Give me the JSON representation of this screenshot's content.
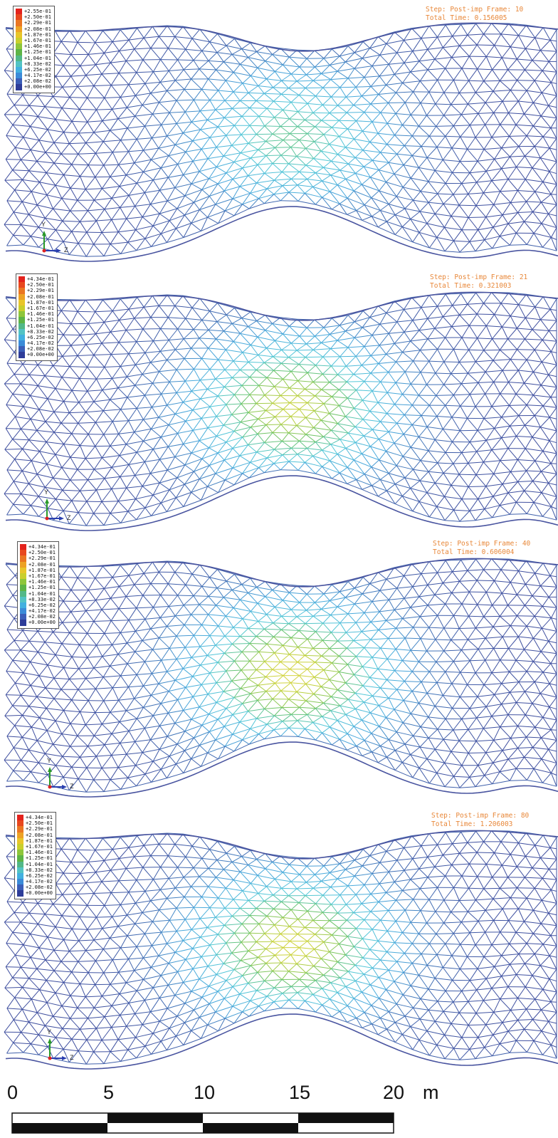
{
  "panels": [
    {
      "id": "frame-10",
      "step_line": "Step: Post-imp Frame: 10",
      "time_line": "Total Time: 0.156005",
      "legend": [
        "+2.55e-01",
        "+2.50e-01",
        "+2.29e-01",
        "+2.08e-01",
        "+1.87e-01",
        "+1.67e-01",
        "+1.46e-01",
        "+1.25e-01",
        "+1.04e-01",
        "+8.33e-02",
        "+6.25e-02",
        "+4.17e-02",
        "+2.08e-02",
        "+0.00e+00"
      ],
      "peak_level": 0.55
    },
    {
      "id": "frame-21",
      "step_line": "Step: Post-imp Frame: 21",
      "time_line": "Total Time: 0.321003",
      "legend": [
        "+4.34e-01",
        "+2.50e-01",
        "+2.29e-01",
        "+2.08e-01",
        "+1.87e-01",
        "+1.67e-01",
        "+1.46e-01",
        "+1.25e-01",
        "+1.04e-01",
        "+8.33e-02",
        "+6.25e-02",
        "+4.17e-02",
        "+2.08e-02",
        "+0.00e+00"
      ],
      "peak_level": 0.75
    },
    {
      "id": "frame-40",
      "step_line": "Step: Post-imp Frame: 40",
      "time_line": "Total Time: 0.606004",
      "legend": [
        "+4.34e-01",
        "+2.50e-01",
        "+2.29e-01",
        "+2.08e-01",
        "+1.87e-01",
        "+1.67e-01",
        "+1.46e-01",
        "+1.25e-01",
        "+1.04e-01",
        "+8.33e-02",
        "+6.25e-02",
        "+4.17e-02",
        "+2.08e-02",
        "+0.00e+00"
      ],
      "peak_level": 0.8
    },
    {
      "id": "frame-80",
      "step_line": "Step: Post-imp Frame: 80",
      "time_line": "Total Time: 1.206003",
      "legend": [
        "+4.34e-01",
        "+2.50e-01",
        "+2.29e-01",
        "+2.08e-01",
        "+1.87e-01",
        "+1.67e-01",
        "+1.46e-01",
        "+1.25e-01",
        "+1.04e-01",
        "+8.33e-02",
        "+6.25e-02",
        "+4.17e-02",
        "+2.08e-02",
        "+0.00e+00"
      ],
      "peak_level": 0.78
    }
  ],
  "legend_colors": [
    "#e3221c",
    "#e8481e",
    "#ea7622",
    "#eda225",
    "#e8c62a",
    "#c9cf2c",
    "#8ec63a",
    "#5db446",
    "#52b888",
    "#52c3c4",
    "#42b0e0",
    "#3b8bd8",
    "#3b5eb8",
    "#2e3d99"
  ],
  "axis_triad": {
    "y_label": "Y",
    "z_label": "Z"
  },
  "scale_bar": {
    "ticks": [
      "0",
      "5",
      "10",
      "15",
      "20"
    ],
    "unit": "m"
  }
}
